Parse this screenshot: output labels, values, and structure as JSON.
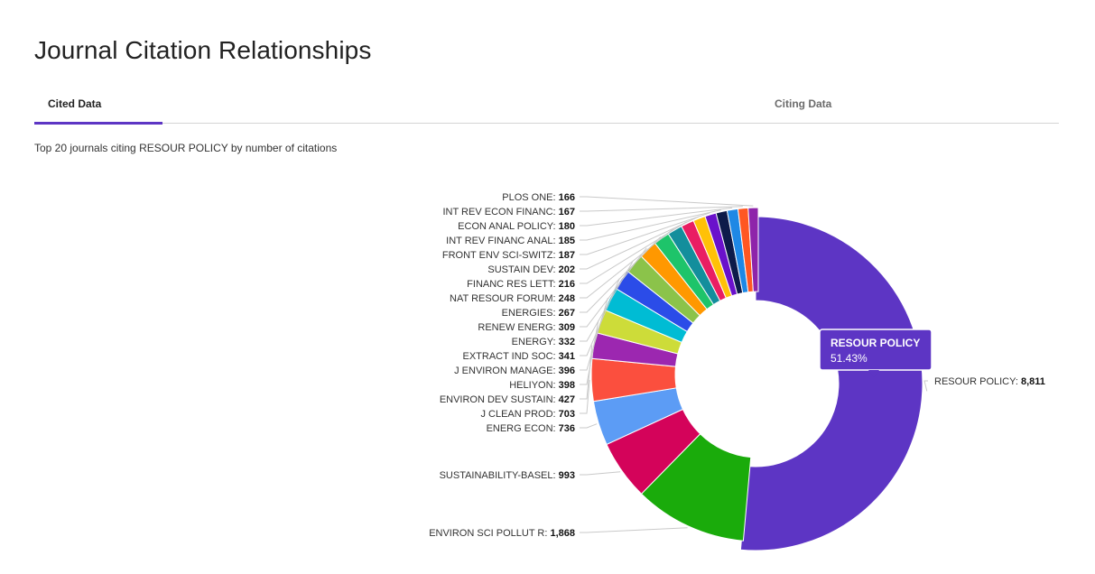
{
  "page": {
    "title": "Journal Citation Relationships",
    "subtitle": "Top 20 journals citing RESOUR POLICY by number of citations"
  },
  "tabs": [
    {
      "label": "Cited Data",
      "active": true
    },
    {
      "label": "Citing Data",
      "active": false
    }
  ],
  "colors": {
    "accent": "#5d35c4"
  },
  "chart_data": {
    "type": "pie",
    "subtype": "donut",
    "title": "",
    "slices": [
      {
        "label": "RESOUR POLICY",
        "value": 8811,
        "display": "8,811",
        "color": "#5d35c4"
      },
      {
        "label": "ENVIRON SCI POLLUT R",
        "value": 1868,
        "display": "1,868",
        "color": "#1aab0b"
      },
      {
        "label": "SUSTAINABILITY-BASEL",
        "value": 993,
        "display": "993",
        "color": "#d4035a"
      },
      {
        "label": "ENERG ECON",
        "value": 736,
        "display": "736",
        "color": "#5c9cf5"
      },
      {
        "label": "J CLEAN PROD",
        "value": 703,
        "display": "703",
        "color": "#fb4f3e"
      },
      {
        "label": "ENVIRON DEV SUSTAIN",
        "value": 427,
        "display": "427",
        "color": "#9c27b0"
      },
      {
        "label": "HELIYON",
        "value": 398,
        "display": "398",
        "color": "#cddc39"
      },
      {
        "label": "J ENVIRON MANAGE",
        "value": 396,
        "display": "396",
        "color": "#00bcd4"
      },
      {
        "label": "EXTRACT IND SOC",
        "value": 341,
        "display": "341",
        "color": "#2b4ce8"
      },
      {
        "label": "ENERGY",
        "value": 332,
        "display": "332",
        "color": "#8bc34a"
      },
      {
        "label": "RENEW ENERG",
        "value": 309,
        "display": "309",
        "color": "#ff9800"
      },
      {
        "label": "ENERGIES",
        "value": 267,
        "display": "267",
        "color": "#1ec46a"
      },
      {
        "label": "NAT RESOUR FORUM",
        "value": 248,
        "display": "248",
        "color": "#138e9c"
      },
      {
        "label": "FINANC RES LETT",
        "value": 216,
        "display": "216",
        "color": "#e91e63"
      },
      {
        "label": "SUSTAIN DEV",
        "value": 202,
        "display": "202",
        "color": "#ffc107"
      },
      {
        "label": "FRONT ENV SCI-SWITZ",
        "value": 187,
        "display": "187",
        "color": "#6a11cb"
      },
      {
        "label": "INT REV FINANC ANAL",
        "value": 185,
        "display": "185",
        "color": "#0d1b4a"
      },
      {
        "label": "ECON ANAL POLICY",
        "value": 180,
        "display": "180",
        "color": "#1e88e5"
      },
      {
        "label": "INT REV ECON FINANC",
        "value": 167,
        "display": "167",
        "color": "#ff5722"
      },
      {
        "label": "PLOS ONE",
        "value": 166,
        "display": "166",
        "color": "#8e24aa"
      }
    ],
    "tooltip": {
      "label": "RESOUR POLICY",
      "percent": "51.43%"
    }
  }
}
